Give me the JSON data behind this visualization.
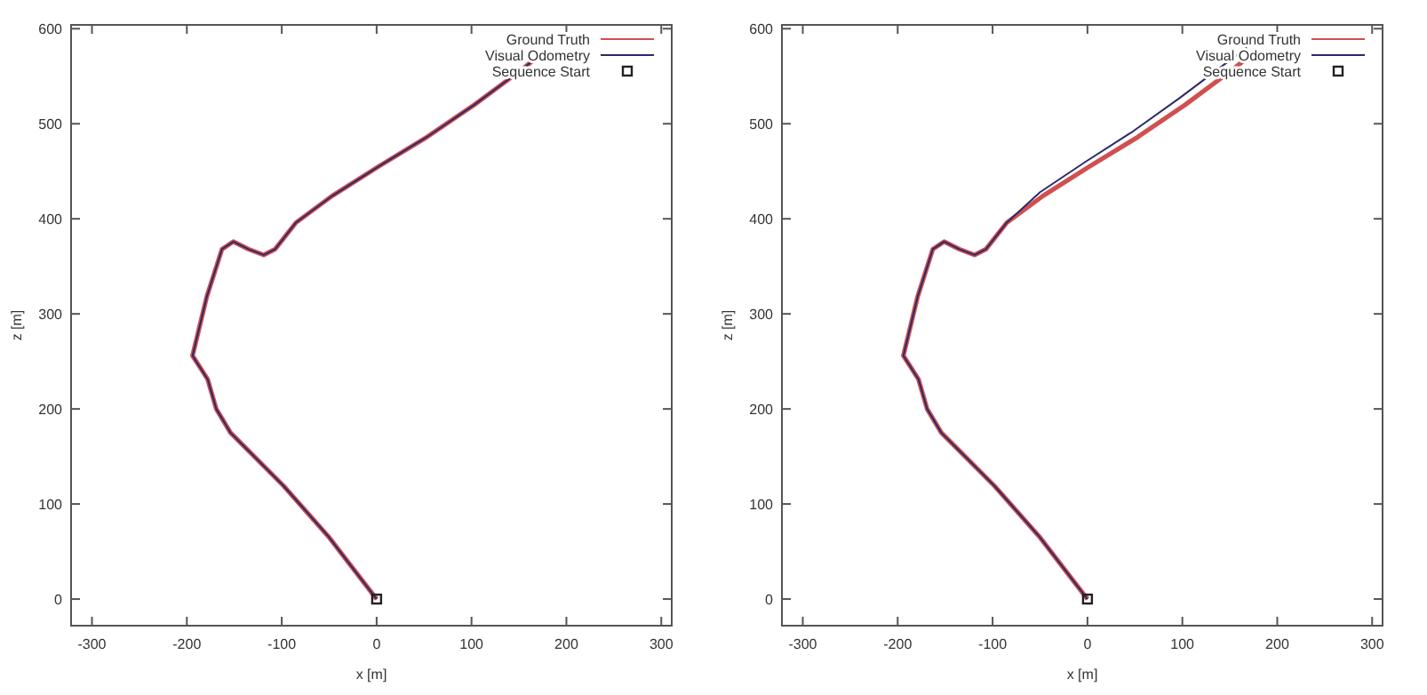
{
  "chart_data": [
    {
      "type": "line",
      "xlabel": "x [m]",
      "ylabel": "z [m]",
      "xlim": [
        -322,
        311
      ],
      "ylim": [
        -28,
        604
      ],
      "xticks": [
        -300,
        -200,
        -100,
        0,
        100,
        200,
        300
      ],
      "yticks": [
        0,
        100,
        200,
        300,
        400,
        500,
        600
      ],
      "grid": false,
      "legend": "top right",
      "series": [
        {
          "name": "Ground Truth",
          "color": "#d05050",
          "marker": "none",
          "x": [
            0,
            -51,
            -98,
            -135,
            -154,
            -169,
            -178,
            -185,
            -194,
            -179,
            -163,
            -151,
            -135,
            -119,
            -107,
            -85,
            -47,
            2,
            53,
            103,
            153,
            178
          ],
          "values": [
            0,
            66,
            119,
            156,
            175,
            200,
            231,
            242,
            256,
            318,
            368,
            376,
            368,
            362,
            368,
            396,
            424,
            455,
            486,
            520,
            557,
            577
          ]
        },
        {
          "name": "Visual Odometry",
          "color": "#2a2a6a",
          "marker": "none",
          "x": [
            0,
            -51,
            -98,
            -135,
            -154,
            -169,
            -178,
            -185,
            -194,
            -179,
            -163,
            -151,
            -135,
            -119,
            -107,
            -85,
            -47,
            2,
            53,
            103,
            153,
            178
          ],
          "values": [
            0,
            66,
            119,
            156,
            175,
            200,
            231,
            242,
            256,
            318,
            368,
            376,
            368,
            362,
            368,
            396,
            424,
            455,
            486,
            520,
            557,
            577
          ]
        },
        {
          "name": "Sequence Start",
          "type": "scatter",
          "color": "#222222",
          "marker": "square",
          "x": [
            0
          ],
          "values": [
            0
          ]
        }
      ]
    },
    {
      "type": "line",
      "xlabel": "x [m]",
      "ylabel": "z [m]",
      "xlim": [
        -322,
        311
      ],
      "ylim": [
        -28,
        604
      ],
      "xticks": [
        -300,
        -200,
        -100,
        0,
        100,
        200,
        300
      ],
      "yticks": [
        0,
        100,
        200,
        300,
        400,
        500,
        600
      ],
      "grid": false,
      "legend": "top right",
      "series": [
        {
          "name": "Ground Truth",
          "color": "#d05050",
          "marker": "none",
          "x": [
            0,
            -51,
            -98,
            -135,
            -154,
            -169,
            -178,
            -185,
            -194,
            -179,
            -163,
            -151,
            -135,
            -119,
            -107,
            -85,
            -47,
            2,
            53,
            103,
            153,
            178
          ],
          "values": [
            0,
            66,
            119,
            156,
            175,
            200,
            231,
            242,
            256,
            318,
            368,
            376,
            368,
            362,
            368,
            396,
            424,
            455,
            486,
            520,
            557,
            577
          ]
        },
        {
          "name": "Visual Odometry",
          "color": "#2a2a6a",
          "marker": "none",
          "x": [
            0,
            -51,
            -98,
            -135,
            -154,
            -169,
            -178,
            -185,
            -194,
            -179,
            -163,
            -151,
            -135,
            -119,
            -107,
            -85,
            -50,
            -2,
            48,
            97,
            145,
            168
          ],
          "values": [
            0,
            66,
            119,
            156,
            175,
            200,
            231,
            242,
            256,
            318,
            368,
            376,
            368,
            362,
            368,
            396,
            428,
            460,
            492,
            527,
            563,
            580
          ]
        },
        {
          "name": "Sequence Start",
          "type": "scatter",
          "color": "#222222",
          "marker": "square",
          "x": [
            0
          ],
          "values": [
            0
          ]
        }
      ]
    }
  ]
}
